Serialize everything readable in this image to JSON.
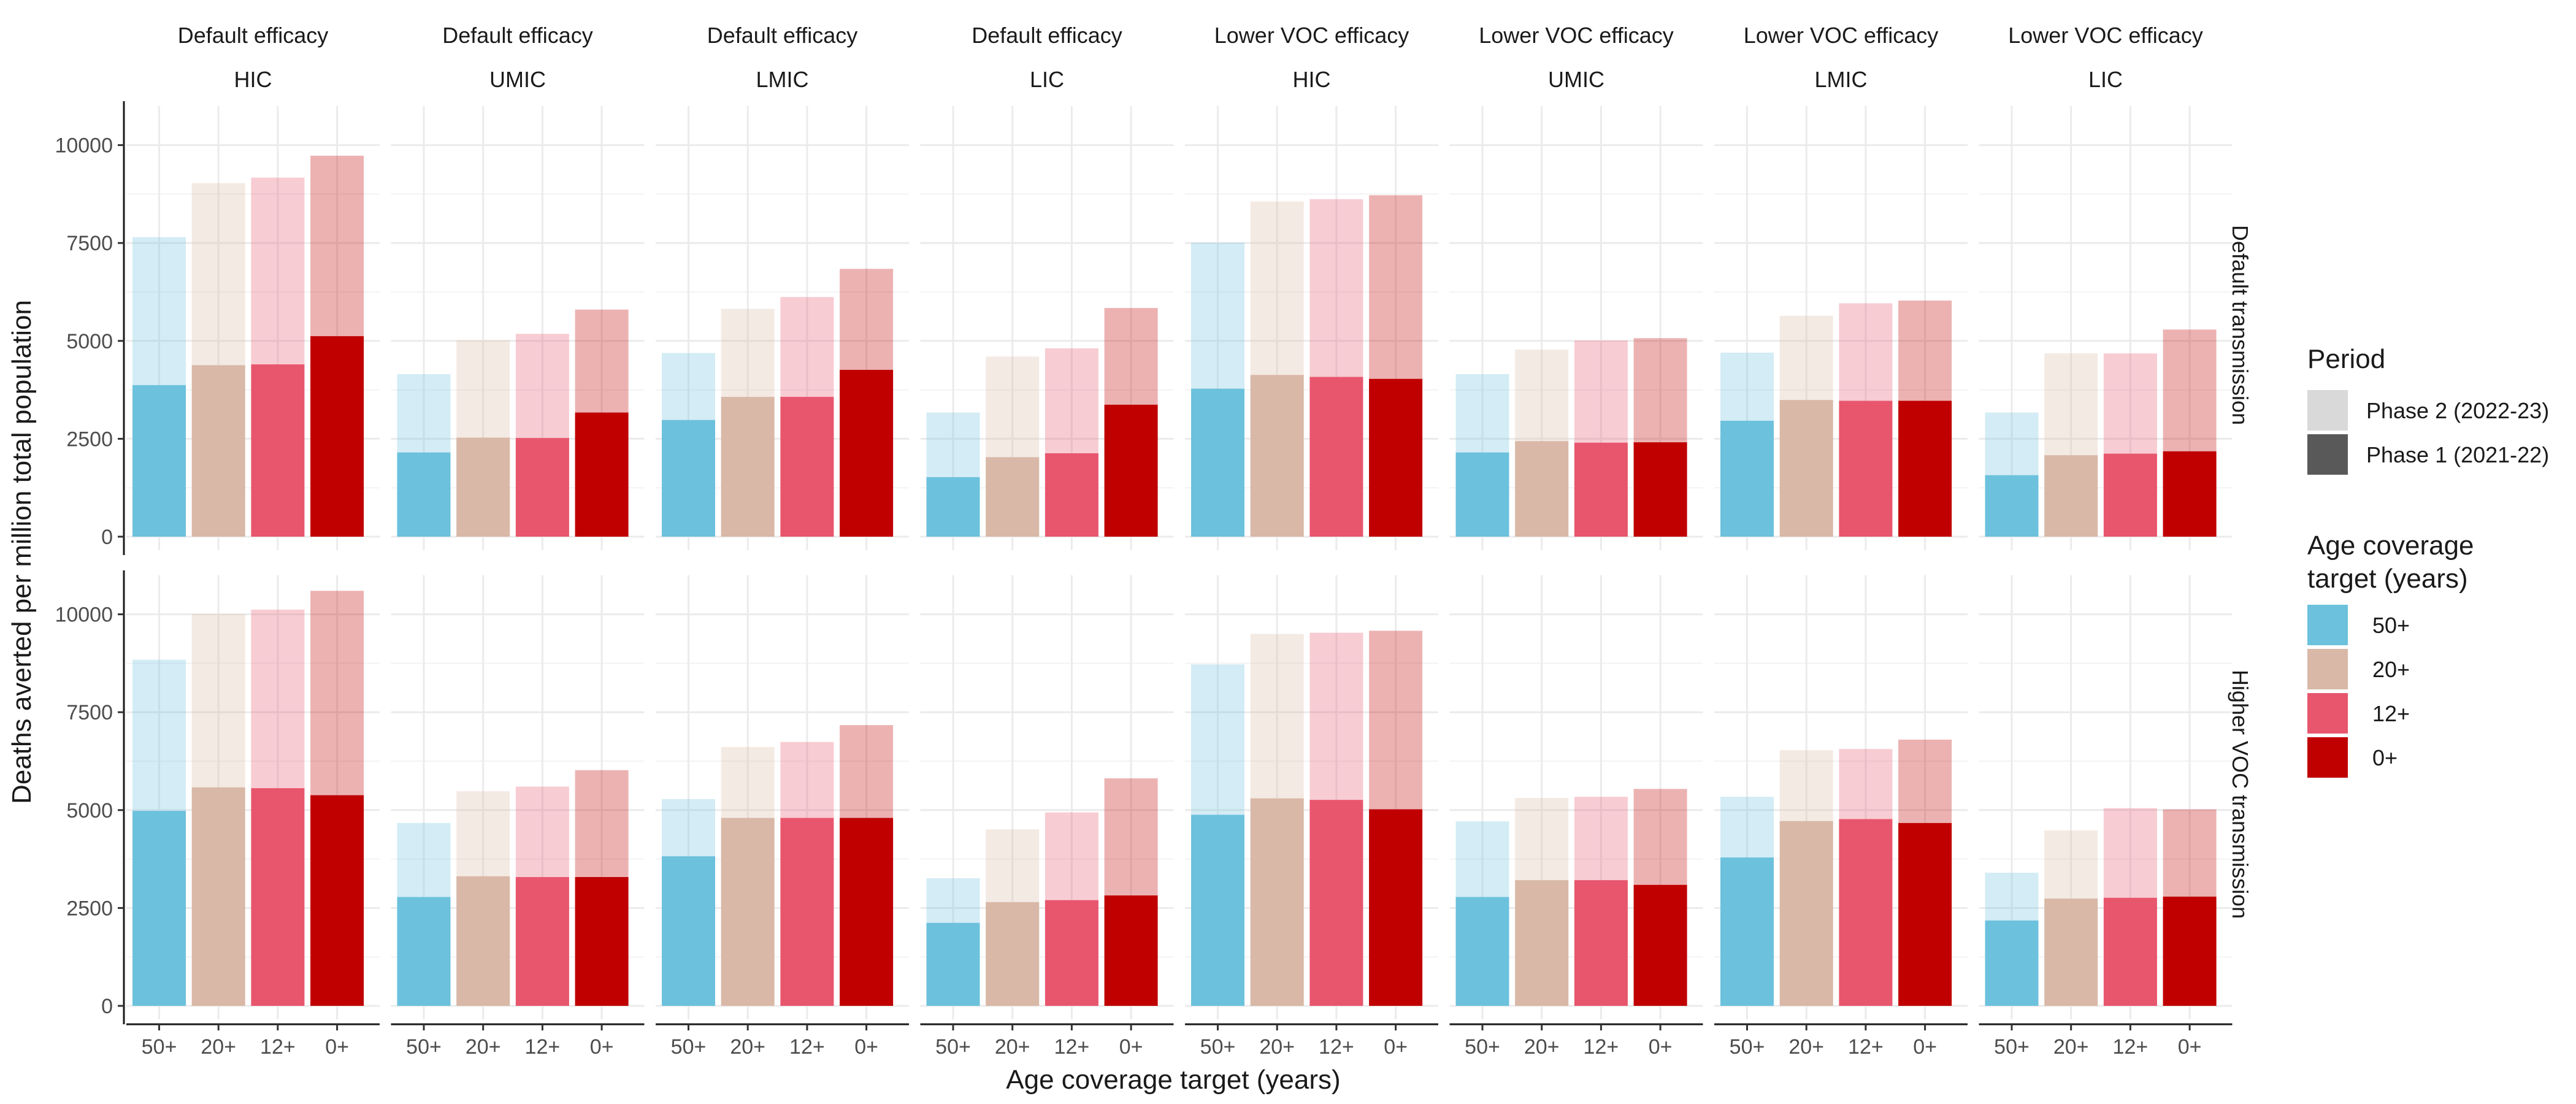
{
  "colors": {
    "age_50": "#6CC1DD",
    "age_20": "#D9B8A7",
    "age_12": "#E8566E",
    "age_0": "#C00000",
    "phase2_swatch": "#D9D9D9",
    "phase1_swatch": "#595959"
  },
  "chart_data": {
    "type": "bar",
    "layout": "stacked-faceted",
    "xlabel": "Age coverage target (years)",
    "ylabel": "Deaths averted per million total population",
    "ylim": [
      0,
      11000
    ],
    "yticks": [
      0,
      2500,
      5000,
      7500,
      10000
    ],
    "grid": true,
    "categories": [
      "50+",
      "20+",
      "12+",
      "0+"
    ],
    "facet_columns": [
      {
        "efficacy": "Default efficacy",
        "income": "HIC"
      },
      {
        "efficacy": "Default efficacy",
        "income": "UMIC"
      },
      {
        "efficacy": "Default efficacy",
        "income": "LMIC"
      },
      {
        "efficacy": "Default efficacy",
        "income": "LIC"
      },
      {
        "efficacy": "Lower VOC efficacy",
        "income": "HIC"
      },
      {
        "efficacy": "Lower VOC efficacy",
        "income": "UMIC"
      },
      {
        "efficacy": "Lower VOC efficacy",
        "income": "LMIC"
      },
      {
        "efficacy": "Lower VOC efficacy",
        "income": "LIC"
      }
    ],
    "facet_rows": [
      "Default transmission",
      "Higher VOC transmission"
    ],
    "values": [
      [
        {
          "phase1": [
            3870,
            4380,
            4400,
            5120
          ],
          "total": [
            7650,
            9030,
            9170,
            9730
          ]
        },
        {
          "phase1": [
            2150,
            2530,
            2520,
            3170
          ],
          "total": [
            4150,
            5020,
            5180,
            5800
          ]
        },
        {
          "phase1": [
            2980,
            3570,
            3570,
            4260
          ],
          "total": [
            4690,
            5820,
            6120,
            6840
          ]
        },
        {
          "phase1": [
            1520,
            2030,
            2130,
            3370
          ],
          "total": [
            3170,
            4600,
            4810,
            5840
          ]
        },
        {
          "phase1": [
            3780,
            4130,
            4080,
            4030
          ],
          "total": [
            7510,
            8560,
            8620,
            8720
          ]
        },
        {
          "phase1": [
            2150,
            2440,
            2400,
            2410
          ],
          "total": [
            4150,
            4780,
            5010,
            5070
          ]
        },
        {
          "phase1": [
            2960,
            3490,
            3470,
            3470
          ],
          "total": [
            4700,
            5640,
            5960,
            6030
          ]
        },
        {
          "phase1": [
            1570,
            2080,
            2120,
            2180
          ],
          "total": [
            3170,
            4680,
            4680,
            5290
          ]
        }
      ],
      [
        {
          "phase1": [
            4980,
            5580,
            5560,
            5380
          ],
          "total": [
            8840,
            10010,
            10120,
            10600
          ]
        },
        {
          "phase1": [
            2780,
            3310,
            3290,
            3290
          ],
          "total": [
            4670,
            5480,
            5600,
            6020
          ]
        },
        {
          "phase1": [
            3820,
            4800,
            4800,
            4800
          ],
          "total": [
            5280,
            6610,
            6740,
            7170
          ]
        },
        {
          "phase1": [
            2120,
            2650,
            2700,
            2820
          ],
          "total": [
            3260,
            4510,
            4940,
            5810
          ]
        },
        {
          "phase1": [
            4880,
            5300,
            5260,
            5020
          ],
          "total": [
            8720,
            9500,
            9530,
            9580
          ]
        },
        {
          "phase1": [
            2780,
            3210,
            3210,
            3090
          ],
          "total": [
            4710,
            5310,
            5340,
            5540
          ]
        },
        {
          "phase1": [
            3790,
            4720,
            4770,
            4670
          ],
          "total": [
            5340,
            6530,
            6560,
            6800
          ]
        },
        {
          "phase1": [
            2180,
            2740,
            2760,
            2790
          ],
          "total": [
            3400,
            4480,
            5050,
            5020
          ]
        }
      ]
    ],
    "legend": {
      "placement": "right",
      "period_title": "Period",
      "period_items": [
        "Phase 2 (2022-23)",
        "Phase 1 (2021-22)"
      ],
      "age_title_line1": "Age coverage",
      "age_title_line2": "target (years)",
      "age_items": [
        "50+",
        "20+",
        "12+",
        "0+"
      ]
    }
  }
}
